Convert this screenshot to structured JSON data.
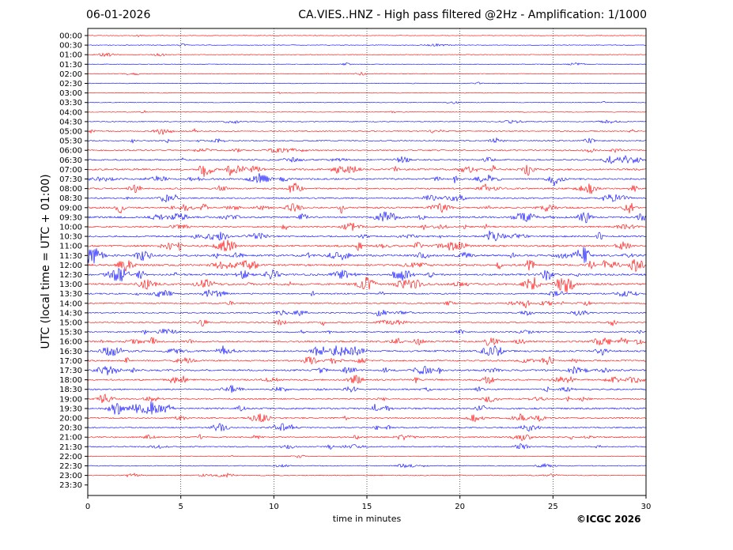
{
  "header": {
    "date": "06-01-2026",
    "title": "CA.VIES..HNZ - High pass filtered @2Hz - Amplification: 1/1000"
  },
  "credit": "©ICGC 2026",
  "chart_data": {
    "type": "line",
    "title": "CA.VIES..HNZ - High pass filtered @2Hz - Amplification: 1/1000",
    "xlabel": "time in minutes",
    "ylabel": "UTC (local time = UTC + 01:00)",
    "xlim": [
      0,
      30
    ],
    "x_ticks": [
      0,
      5,
      10,
      15,
      20,
      25,
      30
    ],
    "x_tick_labels": [
      "0",
      "5",
      "10",
      "15",
      "20",
      "25",
      "30"
    ],
    "y_tick_labels": [
      "00:00",
      "00:30",
      "01:00",
      "01:30",
      "02:00",
      "02:30",
      "03:00",
      "03:30",
      "04:00",
      "04:30",
      "05:00",
      "05:30",
      "06:00",
      "06:30",
      "07:00",
      "07:30",
      "08:00",
      "08:30",
      "09:00",
      "09:30",
      "10:00",
      "10:30",
      "11:00",
      "11:30",
      "12:00",
      "12:30",
      "13:00",
      "13:30",
      "14:00",
      "14:30",
      "15:00",
      "15:30",
      "16:00",
      "16:30",
      "17:00",
      "17:30",
      "18:00",
      "18:30",
      "19:00",
      "19:30",
      "20:00",
      "20:30",
      "21:00",
      "21:30",
      "22:00",
      "22:30",
      "23:00",
      "23:30"
    ],
    "grid": "vertical dotted at x ticks",
    "trace_colors": [
      "#ff0000",
      "#0000ff"
    ],
    "recorded_until": "23:00",
    "activity_level": [
      0.02,
      0.05,
      0.1,
      0.04,
      0.05,
      0.08,
      0.03,
      0.04,
      0.06,
      0.15,
      0.3,
      0.35,
      0.45,
      0.55,
      0.75,
      0.7,
      0.6,
      0.55,
      0.7,
      0.8,
      0.6,
      0.65,
      0.8,
      0.9,
      0.85,
      0.8,
      0.85,
      0.5,
      0.45,
      0.4,
      0.4,
      0.45,
      0.7,
      0.75,
      0.6,
      0.7,
      0.65,
      0.5,
      0.55,
      0.7,
      0.5,
      0.45,
      0.5,
      0.35,
      0.1,
      0.2,
      0.2,
      0
    ]
  }
}
